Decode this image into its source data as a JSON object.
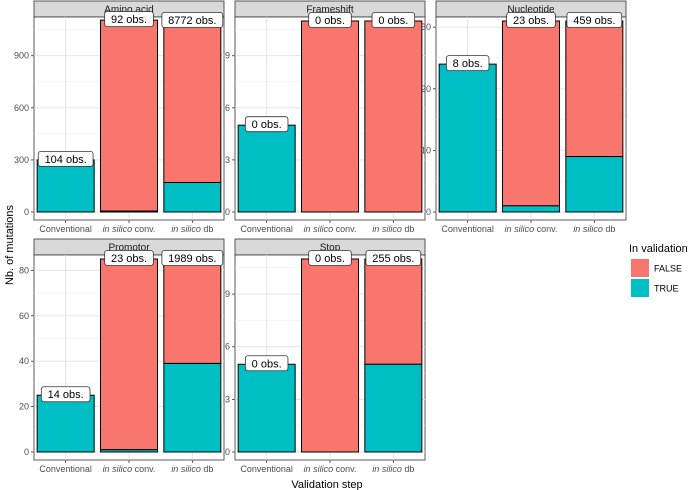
{
  "chart_data": {
    "type": "bar",
    "stacked": true,
    "xlabel": "Validation step",
    "ylabel": "Nb. of mutations",
    "categories": [
      {
        "prefix": "",
        "italic": "",
        "suffix": "Conventional"
      },
      {
        "prefix": "",
        "italic": "in silico",
        "suffix": " conv."
      },
      {
        "prefix": "",
        "italic": "in silico",
        "suffix": " db"
      }
    ],
    "legend": {
      "title": "In validation",
      "position": "right",
      "items": [
        {
          "name": "FALSE",
          "color": "#F8766D"
        },
        {
          "name": "TRUE",
          "color": "#00BFC4"
        }
      ]
    },
    "panels": [
      {
        "title": "Amino acid",
        "ylim": [
          0,
          1100
        ],
        "yticks": [
          0,
          300,
          600,
          900
        ],
        "true_values": [
          300,
          5,
          170
        ],
        "false_values": [
          0,
          1100,
          930
        ],
        "labels": [
          "104 obs.",
          "92 obs.",
          "8772 obs."
        ]
      },
      {
        "title": "Frameshift",
        "ylim": [
          0,
          11
        ],
        "yticks": [
          0,
          3,
          6,
          9
        ],
        "true_values": [
          5,
          0,
          0
        ],
        "false_values": [
          0,
          11,
          11
        ],
        "labels": [
          "0 obs.",
          "0 obs.",
          "0 obs."
        ]
      },
      {
        "title": "Nucleotide",
        "ylim": [
          0,
          31
        ],
        "yticks": [
          0,
          10,
          20,
          30
        ],
        "true_values": [
          24,
          1,
          9
        ],
        "false_values": [
          0,
          30,
          22
        ],
        "labels": [
          "8 obs.",
          "23 obs.",
          "459 obs."
        ]
      },
      {
        "title": "Promotor",
        "ylim": [
          0,
          85
        ],
        "yticks": [
          0,
          20,
          40,
          60,
          80
        ],
        "true_values": [
          25,
          1,
          39
        ],
        "false_values": [
          0,
          84,
          46
        ],
        "labels": [
          "14 obs.",
          "23 obs.",
          "1989 obs."
        ]
      },
      {
        "title": "Stop",
        "ylim": [
          0,
          11
        ],
        "yticks": [
          0,
          3,
          6,
          9
        ],
        "true_values": [
          5,
          0,
          5
        ],
        "false_values": [
          0,
          11,
          6
        ],
        "labels": [
          "0 obs.",
          "0 obs.",
          "255 obs."
        ]
      }
    ]
  }
}
